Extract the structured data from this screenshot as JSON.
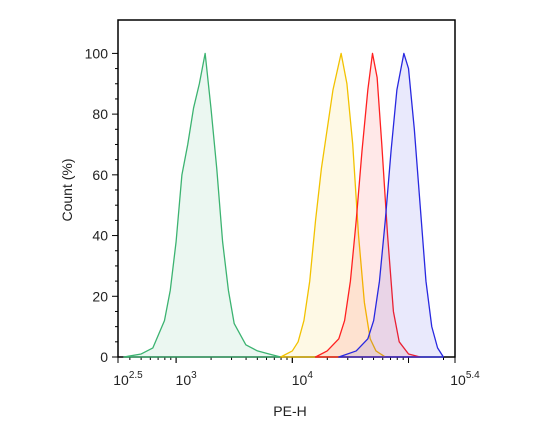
{
  "chart_data": {
    "type": "histogram-overlay",
    "xlabel": "PE-H",
    "ylabel": "Count (%)",
    "xscale": "log",
    "xlim": [
      316.23,
      251188.6
    ],
    "ylim": [
      0,
      111
    ],
    "xticks": [
      {
        "value": 316.23,
        "label": "10",
        "exponent": "2.5"
      },
      {
        "value": 1000,
        "label": "10",
        "exponent": "3"
      },
      {
        "value": 10000,
        "label": "10",
        "exponent": "4"
      },
      {
        "value": 251188.6,
        "label": "10",
        "exponent": "5.4"
      }
    ],
    "yticks": [
      0,
      20,
      40,
      60,
      80,
      100
    ],
    "series": [
      {
        "color": "#3cb371",
        "x": [
          355,
          501,
          631,
          794,
          891,
          1000,
          1122,
          1259,
          1413,
          1585,
          1778,
          1995,
          2239,
          2512,
          2818,
          3162,
          3981,
          5012,
          6310,
          7943
        ],
        "values": [
          0,
          1,
          3,
          12,
          22,
          38,
          60,
          70,
          82,
          90,
          100,
          82,
          62,
          38,
          22,
          11,
          4,
          2,
          1,
          0
        ]
      },
      {
        "color": "#f2c200",
        "x": [
          7943,
          10000,
          11220,
          12589,
          14125,
          15849,
          17783,
          19953,
          22387,
          26303,
          29512,
          33113,
          37154,
          41687,
          46774,
          52481,
          63096
        ],
        "values": [
          0,
          2,
          5,
          12,
          25,
          45,
          62,
          75,
          88,
          100,
          90,
          70,
          40,
          18,
          6,
          2,
          0
        ]
      },
      {
        "color": "#ff2020",
        "x": [
          15849,
          19953,
          25119,
          28184,
          31623,
          35481,
          39811,
          44668,
          48978,
          53703,
          58884,
          66069,
          74131,
          83176,
          100000,
          125893
        ],
        "values": [
          0,
          2,
          6,
          12,
          25,
          45,
          68,
          88,
          100,
          92,
          70,
          40,
          15,
          5,
          1,
          0
        ]
      },
      {
        "color": "#2828e0",
        "x": [
          25119,
          35481,
          44668,
          50119,
          56234,
          63096,
          70795,
          79433,
          91201,
          100000,
          112202,
          125893,
          141254,
          158489,
          177828,
          199526
        ],
        "values": [
          0,
          2,
          6,
          12,
          25,
          45,
          68,
          88,
          100,
          95,
          75,
          50,
          25,
          10,
          3,
          0
        ]
      }
    ]
  }
}
